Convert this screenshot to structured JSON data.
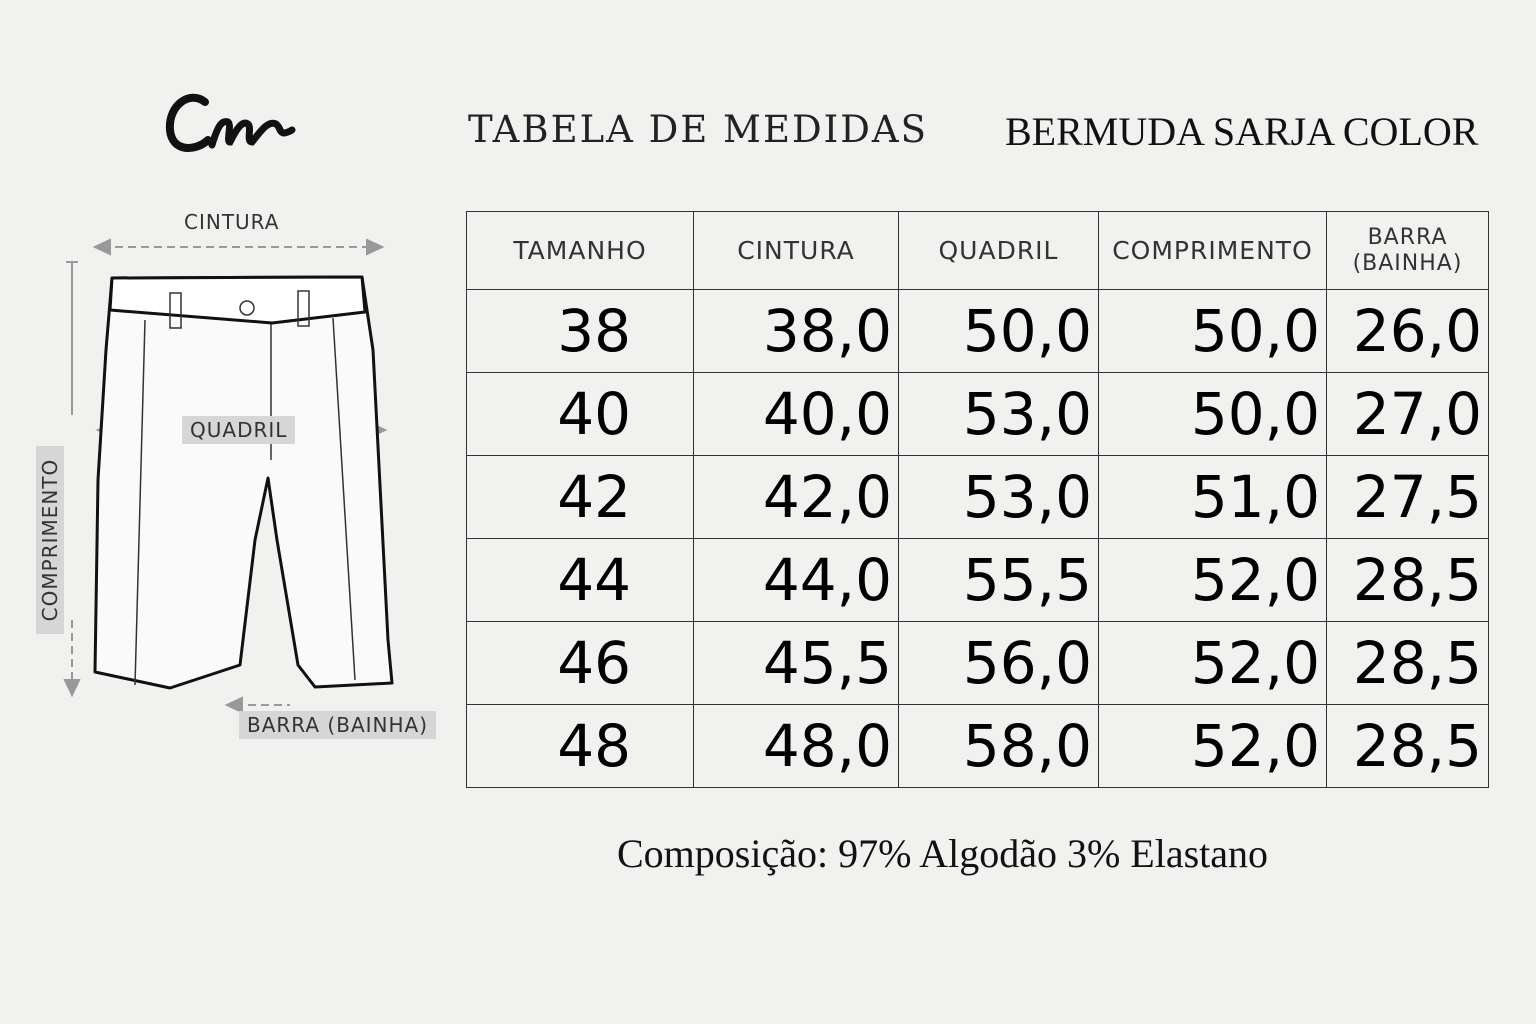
{
  "brand": {
    "logo_text": "Cm"
  },
  "header": {
    "title": "TABELA DE MEDIDAS",
    "subtitle": "BERMUDA SARJA COLOR"
  },
  "diagram": {
    "labels": {
      "waist": "CINTURA",
      "hip": "QUADRIL",
      "length": "COMPRIMENTO",
      "hem": "BARRA (BAINHA)"
    }
  },
  "table": {
    "headers": [
      "TAMANHO",
      "CINTURA",
      "QUADRIL",
      "COMPRIMENTO",
      "BARRA",
      "(BAINHA)"
    ],
    "rows": [
      [
        "38",
        "38,0",
        "50,0",
        "50,0",
        "26,0"
      ],
      [
        "40",
        "40,0",
        "53,0",
        "50,0",
        "27,0"
      ],
      [
        "42",
        "42,0",
        "53,0",
        "51,0",
        "27,5"
      ],
      [
        "44",
        "44,0",
        "55,5",
        "52,0",
        "28,5"
      ],
      [
        "46",
        "45,5",
        "56,0",
        "52,0",
        "28,5"
      ],
      [
        "48",
        "48,0",
        "58,0",
        "52,0",
        "28,5"
      ]
    ]
  },
  "footer": {
    "composition": "Composição: 97% Algodão 3% Elastano"
  }
}
